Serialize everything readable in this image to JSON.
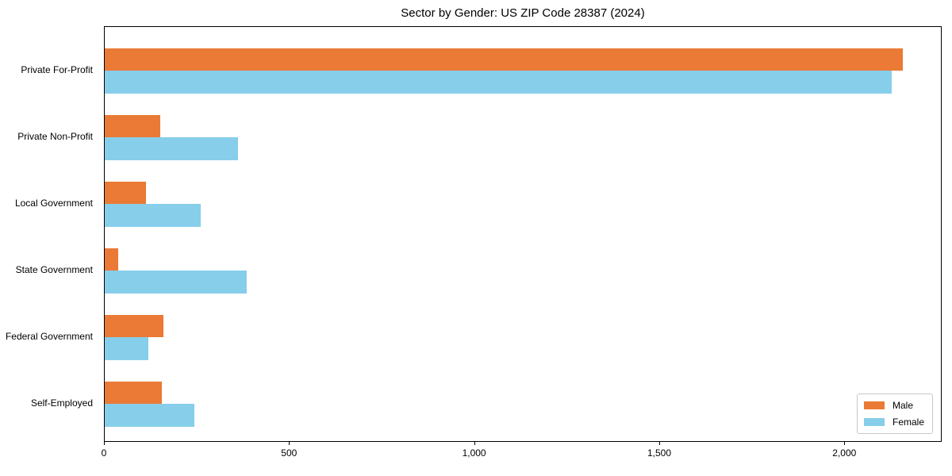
{
  "chart_data": {
    "type": "bar",
    "orientation": "horizontal",
    "title": "Sector by Gender: US ZIP Code 28387 (2024)",
    "xlabel": "",
    "ylabel": "",
    "categories": [
      "Private For-Profit",
      "Private Non-Profit",
      "Local Government",
      "State Government",
      "Federal Government",
      "Self-Employed"
    ],
    "series": [
      {
        "name": "Male",
        "color": "#EA7A35",
        "values": [
          2155,
          150,
          111,
          36,
          159,
          155
        ]
      },
      {
        "name": "Female",
        "color": "#87CEEB",
        "values": [
          2125,
          360,
          260,
          384,
          117,
          242
        ]
      }
    ],
    "xlim": [
      0,
      2263
    ],
    "x_ticks": [
      {
        "value": 0,
        "label": "0"
      },
      {
        "value": 500,
        "label": "500"
      },
      {
        "value": 1000,
        "label": "1,000"
      },
      {
        "value": 1500,
        "label": "1,500"
      },
      {
        "value": 2000,
        "label": "2,000"
      }
    ],
    "grid": false,
    "legend_position": "lower right",
    "legend_items": [
      "Male",
      "Female"
    ]
  },
  "colors": {
    "male": "#EA7A35",
    "female": "#87CEEB",
    "spine": "#000000",
    "legend_border": "#c9c9c9",
    "background": "#ffffff"
  }
}
